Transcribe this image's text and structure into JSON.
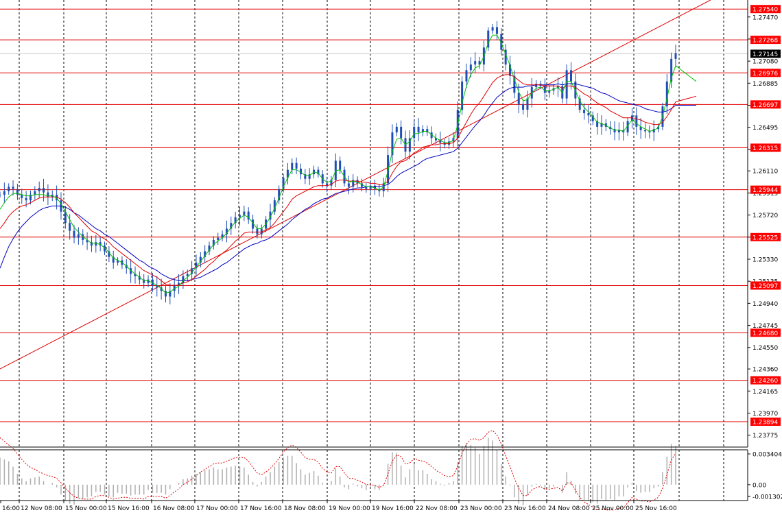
{
  "colors": {
    "background": "#ffffff",
    "frame": "#000000",
    "grid": "#000000",
    "candle": "#1f4fb5",
    "level_line": "#e00000",
    "trendline": "#e00000",
    "ma_fast": "#00c000",
    "ma_mid": "#e00000",
    "ma_slow": "#0000c0",
    "osc_hist": "#b0b0b0",
    "osc_signal": "#e00000",
    "price_tag_bg": "#ff0000",
    "price_tag_text": "#ffffff",
    "current_tag_bg": "#000000"
  },
  "chart_data": {
    "type": "line",
    "description_free": true,
    "price_axis": {
      "range": [
        1.2367,
        1.2762
      ],
      "tick_labels": [
        "1.27470",
        "1.27275",
        "1.27080",
        "1.26885",
        "1.26690",
        "1.26495",
        "1.26300",
        "1.26110",
        "1.25915",
        "1.25720",
        "1.25525",
        "1.25330",
        "1.25135",
        "1.24940",
        "1.24745",
        "1.24550",
        "1.24360",
        "1.24165",
        "1.23970",
        "1.23775"
      ],
      "tick_values": [
        1.2747,
        1.27275,
        1.2708,
        1.26885,
        1.2669,
        1.26495,
        1.263,
        1.2611,
        1.25915,
        1.2572,
        1.25525,
        1.2533,
        1.25135,
        1.2494,
        1.24745,
        1.2455,
        1.2436,
        1.24165,
        1.2397,
        1.23775
      ],
      "current_price_label": "1.27145",
      "current_price": 1.27145
    },
    "levels": [
      {
        "label": "1.27540",
        "value": 1.2754
      },
      {
        "label": "1.27268",
        "value": 1.27268
      },
      {
        "label": "1.26976",
        "value": 1.26976
      },
      {
        "label": "1.26697",
        "value": 1.26697
      },
      {
        "label": "1.26315",
        "value": 1.26315
      },
      {
        "label": "1.25944",
        "value": 1.25944
      },
      {
        "label": "1.25525",
        "value": 1.25525
      },
      {
        "label": "1.25097",
        "value": 1.25097
      },
      {
        "label": "1.24680",
        "value": 1.2468
      },
      {
        "label": "1.24260",
        "value": 1.2426
      },
      {
        "label": "1.23894",
        "value": 1.23894
      }
    ],
    "time_axis": {
      "labels": [
        "16:00",
        "12 Nov 08:00",
        "15 Nov 00:00",
        "15 Nov 16:00",
        "16 Nov 08:00",
        "17 Nov 00:00",
        "17 Nov 16:00",
        "18 Nov 08:00",
        "19 Nov 00:00",
        "19 Nov 16:00",
        "22 Nov 08:00",
        "23 Nov 00:00",
        "23 Nov 16:00",
        "24 Nov 08:00",
        "25 Nov 00:00",
        "25 Nov 16:00"
      ]
    },
    "trendline": {
      "from": {
        "bar": 0,
        "price": 1.2436
      },
      "to": {
        "bar": 163,
        "price": 1.2762
      }
    },
    "close": [
      1.259,
      1.2593,
      1.2597,
      1.2595,
      1.259,
      1.2587,
      1.2585,
      1.259,
      1.2593,
      1.2596,
      1.2592,
      1.2588,
      1.259,
      1.2585,
      1.2575,
      1.2565,
      1.2558,
      1.2552,
      1.2555,
      1.255,
      1.2548,
      1.2545,
      1.2548,
      1.2545,
      1.254,
      1.2535,
      1.253,
      1.2532,
      1.2528,
      1.2525,
      1.252,
      1.2518,
      1.2515,
      1.2512,
      1.2515,
      1.251,
      1.2508,
      1.2505,
      1.25,
      1.2505,
      1.251,
      1.2512,
      1.2518,
      1.252,
      1.2525,
      1.253,
      1.2535,
      1.254,
      1.2545,
      1.255,
      1.2552,
      1.2555,
      1.256,
      1.2565,
      1.257,
      1.2572,
      1.2575,
      1.2568,
      1.256,
      1.2555,
      1.256,
      1.2568,
      1.2575,
      1.2585,
      1.2595,
      1.2605,
      1.2612,
      1.2618,
      1.2613,
      1.2608,
      1.2604,
      1.2608,
      1.2612,
      1.2608,
      1.26,
      1.2598,
      1.2603,
      1.262,
      1.2612,
      1.26,
      1.2597,
      1.2603,
      1.26,
      1.2597,
      1.2595,
      1.2598,
      1.2595,
      1.2593,
      1.26,
      1.2625,
      1.2645,
      1.265,
      1.264,
      1.2628,
      1.264,
      1.265,
      1.2645,
      1.2648,
      1.2645,
      1.264,
      1.2638,
      1.2636,
      1.2634,
      1.2637,
      1.264,
      1.2665,
      1.269,
      1.27,
      1.2705,
      1.2708,
      1.2705,
      1.272,
      1.2735,
      1.2738,
      1.2732,
      1.2718,
      1.2705,
      1.2695,
      1.268,
      1.267,
      1.2665,
      1.2675,
      1.2685,
      1.2688,
      1.2686,
      1.268,
      1.2682,
      1.2684,
      1.2686,
      1.2675,
      1.27,
      1.269,
      1.2675,
      1.2665,
      1.2662,
      1.266,
      1.2655,
      1.265,
      1.2653,
      1.265,
      1.2648,
      1.2645,
      1.2647,
      1.2645,
      1.2655,
      1.266,
      1.265,
      1.2647,
      1.2646,
      1.2645,
      1.2648,
      1.265,
      1.2668,
      1.269,
      1.271,
      1.2715
    ],
    "ma_fast": [
      1.2577,
      1.2583,
      1.2588,
      1.2591,
      1.2591,
      1.259,
      1.2589,
      1.2589,
      1.259,
      1.259,
      1.259,
      1.2589,
      1.2589,
      1.2587,
      1.2582,
      1.2575,
      1.2568,
      1.2561,
      1.2557,
      1.2553,
      1.255,
      1.2547,
      1.2547,
      1.2546,
      1.2543,
      1.2539,
      1.2534,
      1.2532,
      1.253,
      1.2527,
      1.2523,
      1.252,
      1.2517,
      1.2514,
      1.2514,
      1.2512,
      1.251,
      1.2507,
      1.2503,
      1.2504,
      1.2507,
      1.2509,
      1.2514,
      1.2517,
      1.2521,
      1.2526,
      1.2531,
      1.2536,
      1.2541,
      1.2546,
      1.2549,
      1.2552,
      1.2556,
      1.2561,
      1.2566,
      1.2569,
      1.2572,
      1.257,
      1.2565,
      1.256,
      1.256,
      1.2564,
      1.257,
      1.2578,
      1.2587,
      1.2597,
      1.2605,
      1.2612,
      1.2612,
      1.261,
      1.2607,
      1.2607,
      1.261,
      1.2609,
      1.2604,
      1.2601,
      1.2602,
      1.2611,
      1.2612,
      1.2606,
      1.2601,
      1.2602,
      1.2601,
      1.2599,
      1.2597,
      1.2597,
      1.2596,
      1.2594,
      1.2597,
      1.2611,
      1.2628,
      1.2639,
      1.264,
      1.2634,
      1.2637,
      1.2644,
      1.2644,
      1.2646,
      1.2646,
      1.2643,
      1.264,
      1.2638,
      1.2636,
      1.2636,
      1.2638,
      1.2652,
      1.2671,
      1.2686,
      1.2696,
      1.2702,
      1.2704,
      1.2712,
      1.2724,
      1.2731,
      1.2731,
      1.2724,
      1.2714,
      1.2704,
      1.2692,
      1.2681,
      1.2673,
      1.2674,
      1.268,
      1.2684,
      1.2685,
      1.2682,
      1.2682,
      1.2683,
      1.2685,
      1.268,
      1.269,
      1.269,
      1.2682,
      1.2673,
      1.2667,
      1.2663,
      1.2659,
      1.2654,
      1.2653,
      1.2651,
      1.2649,
      1.2647,
      1.2647,
      1.2646,
      1.2651,
      1.2656,
      1.2653,
      1.265,
      1.2648,
      1.2646,
      1.2647,
      1.2649,
      1.2659,
      1.2675,
      1.2693,
      1.2704
    ],
    "ma_mid": [
      1.256,
      1.2565,
      1.2571,
      1.2575,
      1.2578,
      1.258,
      1.2581,
      1.2583,
      1.2585,
      1.2587,
      1.2588,
      1.2588,
      1.2588,
      1.2588,
      1.2586,
      1.2583,
      1.2579,
      1.2574,
      1.257,
      1.2566,
      1.2562,
      1.2558,
      1.2556,
      1.2553,
      1.2551,
      1.2548,
      1.2544,
      1.2541,
      1.2538,
      1.2535,
      1.2532,
      1.2529,
      1.2526,
      1.2523,
      1.2521,
      1.2519,
      1.2517,
      1.2514,
      1.2511,
      1.251,
      1.251,
      1.251,
      1.2512,
      1.2513,
      1.2515,
      1.2518,
      1.2521,
      1.2524,
      1.2528,
      1.2531,
      1.2535,
      1.2538,
      1.2541,
      1.2545,
      1.2549,
      1.2552,
      1.2556,
      1.2557,
      1.2557,
      1.2557,
      1.2557,
      1.2559,
      1.2561,
      1.2565,
      1.257,
      1.2575,
      1.258,
      1.2586,
      1.2589,
      1.2591,
      1.2593,
      1.2595,
      1.2597,
      1.2598,
      1.2598,
      1.2598,
      1.2599,
      1.2602,
      1.2603,
      1.2603,
      1.2602,
      1.2602,
      1.2602,
      1.2601,
      1.2601,
      1.26,
      1.26,
      1.2599,
      1.2599,
      1.2602,
      1.2609,
      1.2615,
      1.2619,
      1.262,
      1.2623,
      1.2627,
      1.2629,
      1.2632,
      1.2633,
      1.2634,
      1.2634,
      1.2635,
      1.2635,
      1.2635,
      1.2636,
      1.264,
      1.2647,
      1.2654,
      1.2661,
      1.2667,
      1.2671,
      1.2677,
      1.2683,
      1.2689,
      1.2693,
      1.2695,
      1.2696,
      1.2696,
      1.2694,
      1.2691,
      1.2688,
      1.2687,
      1.2687,
      1.2687,
      1.2687,
      1.2686,
      1.2686,
      1.2686,
      1.2686,
      1.2684,
      1.2686,
      1.2686,
      1.2685,
      1.2682,
      1.2679,
      1.2677,
      1.2674,
      1.2671,
      1.2669,
      1.2667,
      1.2664,
      1.2662,
      1.266,
      1.2658,
      1.2658,
      1.2658,
      1.2657,
      1.2656,
      1.2654,
      1.2653,
      1.2652,
      1.2652,
      1.2654,
      1.2659,
      1.2665,
      1.2672
    ],
    "ma_slow": [
      1.2525,
      1.2535,
      1.2544,
      1.2551,
      1.2557,
      1.2562,
      1.2566,
      1.257,
      1.2573,
      1.2576,
      1.2578,
      1.2579,
      1.258,
      1.258,
      1.258,
      1.2579,
      1.2577,
      1.2574,
      1.2572,
      1.2569,
      1.2566,
      1.2563,
      1.256,
      1.2558,
      1.2555,
      1.2553,
      1.255,
      1.2547,
      1.2544,
      1.2541,
      1.2538,
      1.2535,
      1.2532,
      1.253,
      1.2527,
      1.2525,
      1.2523,
      1.252,
      1.2518,
      1.2516,
      1.2515,
      1.2514,
      1.2514,
      1.2514,
      1.2515,
      1.2516,
      1.2517,
      1.2519,
      1.2521,
      1.2523,
      1.2525,
      1.2528,
      1.253,
      1.2533,
      1.2536,
      1.2539,
      1.2542,
      1.2544,
      1.2546,
      1.2547,
      1.2549,
      1.255,
      1.2552,
      1.2555,
      1.2558,
      1.2561,
      1.2564,
      1.2568,
      1.2571,
      1.2574,
      1.2577,
      1.2579,
      1.2582,
      1.2584,
      1.2586,
      1.2587,
      1.2589,
      1.2591,
      1.2592,
      1.2593,
      1.2594,
      1.2595,
      1.2596,
      1.2596,
      1.2597,
      1.2597,
      1.2597,
      1.2597,
      1.2598,
      1.2599,
      1.2602,
      1.2606,
      1.2609,
      1.2611,
      1.2613,
      1.2615,
      1.2617,
      1.262,
      1.2622,
      1.2623,
      1.2624,
      1.2625,
      1.2626,
      1.2627,
      1.2628,
      1.2631,
      1.2636,
      1.2641,
      1.2646,
      1.2651,
      1.2655,
      1.266,
      1.2666,
      1.2671,
      1.2676,
      1.2679,
      1.2682,
      1.2684,
      1.2685,
      1.2685,
      1.2685,
      1.2686,
      1.2686,
      1.2687,
      1.2687,
      1.2687,
      1.2687,
      1.2687,
      1.2688,
      1.2687,
      1.2688,
      1.2688,
      1.2688,
      1.2687,
      1.2686,
      1.2685,
      1.2684,
      1.2682,
      1.268,
      1.2679,
      1.2677,
      1.2675,
      1.2673,
      1.2672,
      1.2671,
      1.267,
      1.2669,
      1.2668,
      1.2666,
      1.2665,
      1.2664,
      1.2663,
      1.2663,
      1.2664,
      1.2666,
      1.2669
    ],
    "oscillator": {
      "tick_labels": [
        "0.003404",
        "0.00",
        "-0.001302"
      ],
      "tick_values": [
        0.003404,
        0.0,
        -0.001302
      ],
      "range": [
        -0.001302,
        0.003404
      ]
    }
  }
}
